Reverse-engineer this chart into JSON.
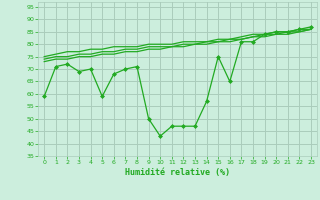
{
  "bg_color": "#cceedd",
  "grid_color": "#aaccbb",
  "line_color": "#22aa22",
  "marker_color": "#22aa22",
  "xlabel": "Humidité relative (%)",
  "xlabel_color": "#22aa22",
  "tick_color": "#22aa22",
  "ylim": [
    35,
    97
  ],
  "xlim": [
    -0.5,
    23.5
  ],
  "yticks": [
    35,
    40,
    45,
    50,
    55,
    60,
    65,
    70,
    75,
    80,
    85,
    90,
    95
  ],
  "xticks": [
    0,
    1,
    2,
    3,
    4,
    5,
    6,
    7,
    8,
    9,
    10,
    11,
    12,
    13,
    14,
    15,
    16,
    17,
    18,
    19,
    20,
    21,
    22,
    23
  ],
  "series_volatile": [
    59,
    71,
    72,
    69,
    70,
    59,
    68,
    70,
    71,
    50,
    43,
    47,
    47,
    47,
    57,
    75,
    65,
    81,
    81,
    84,
    85,
    85,
    86,
    87
  ],
  "series_smooth": [
    [
      75,
      76,
      77,
      77,
      78,
      78,
      79,
      79,
      79,
      80,
      80,
      80,
      81,
      81,
      81,
      82,
      82,
      83,
      84,
      84,
      85,
      85,
      86,
      86
    ],
    [
      74,
      75,
      75,
      76,
      76,
      77,
      77,
      78,
      78,
      79,
      79,
      79,
      80,
      80,
      81,
      81,
      82,
      82,
      83,
      84,
      84,
      85,
      85,
      86
    ],
    [
      73,
      74,
      74,
      75,
      75,
      76,
      76,
      77,
      77,
      78,
      78,
      79,
      79,
      80,
      80,
      81,
      81,
      82,
      83,
      83,
      84,
      84,
      85,
      86
    ]
  ]
}
